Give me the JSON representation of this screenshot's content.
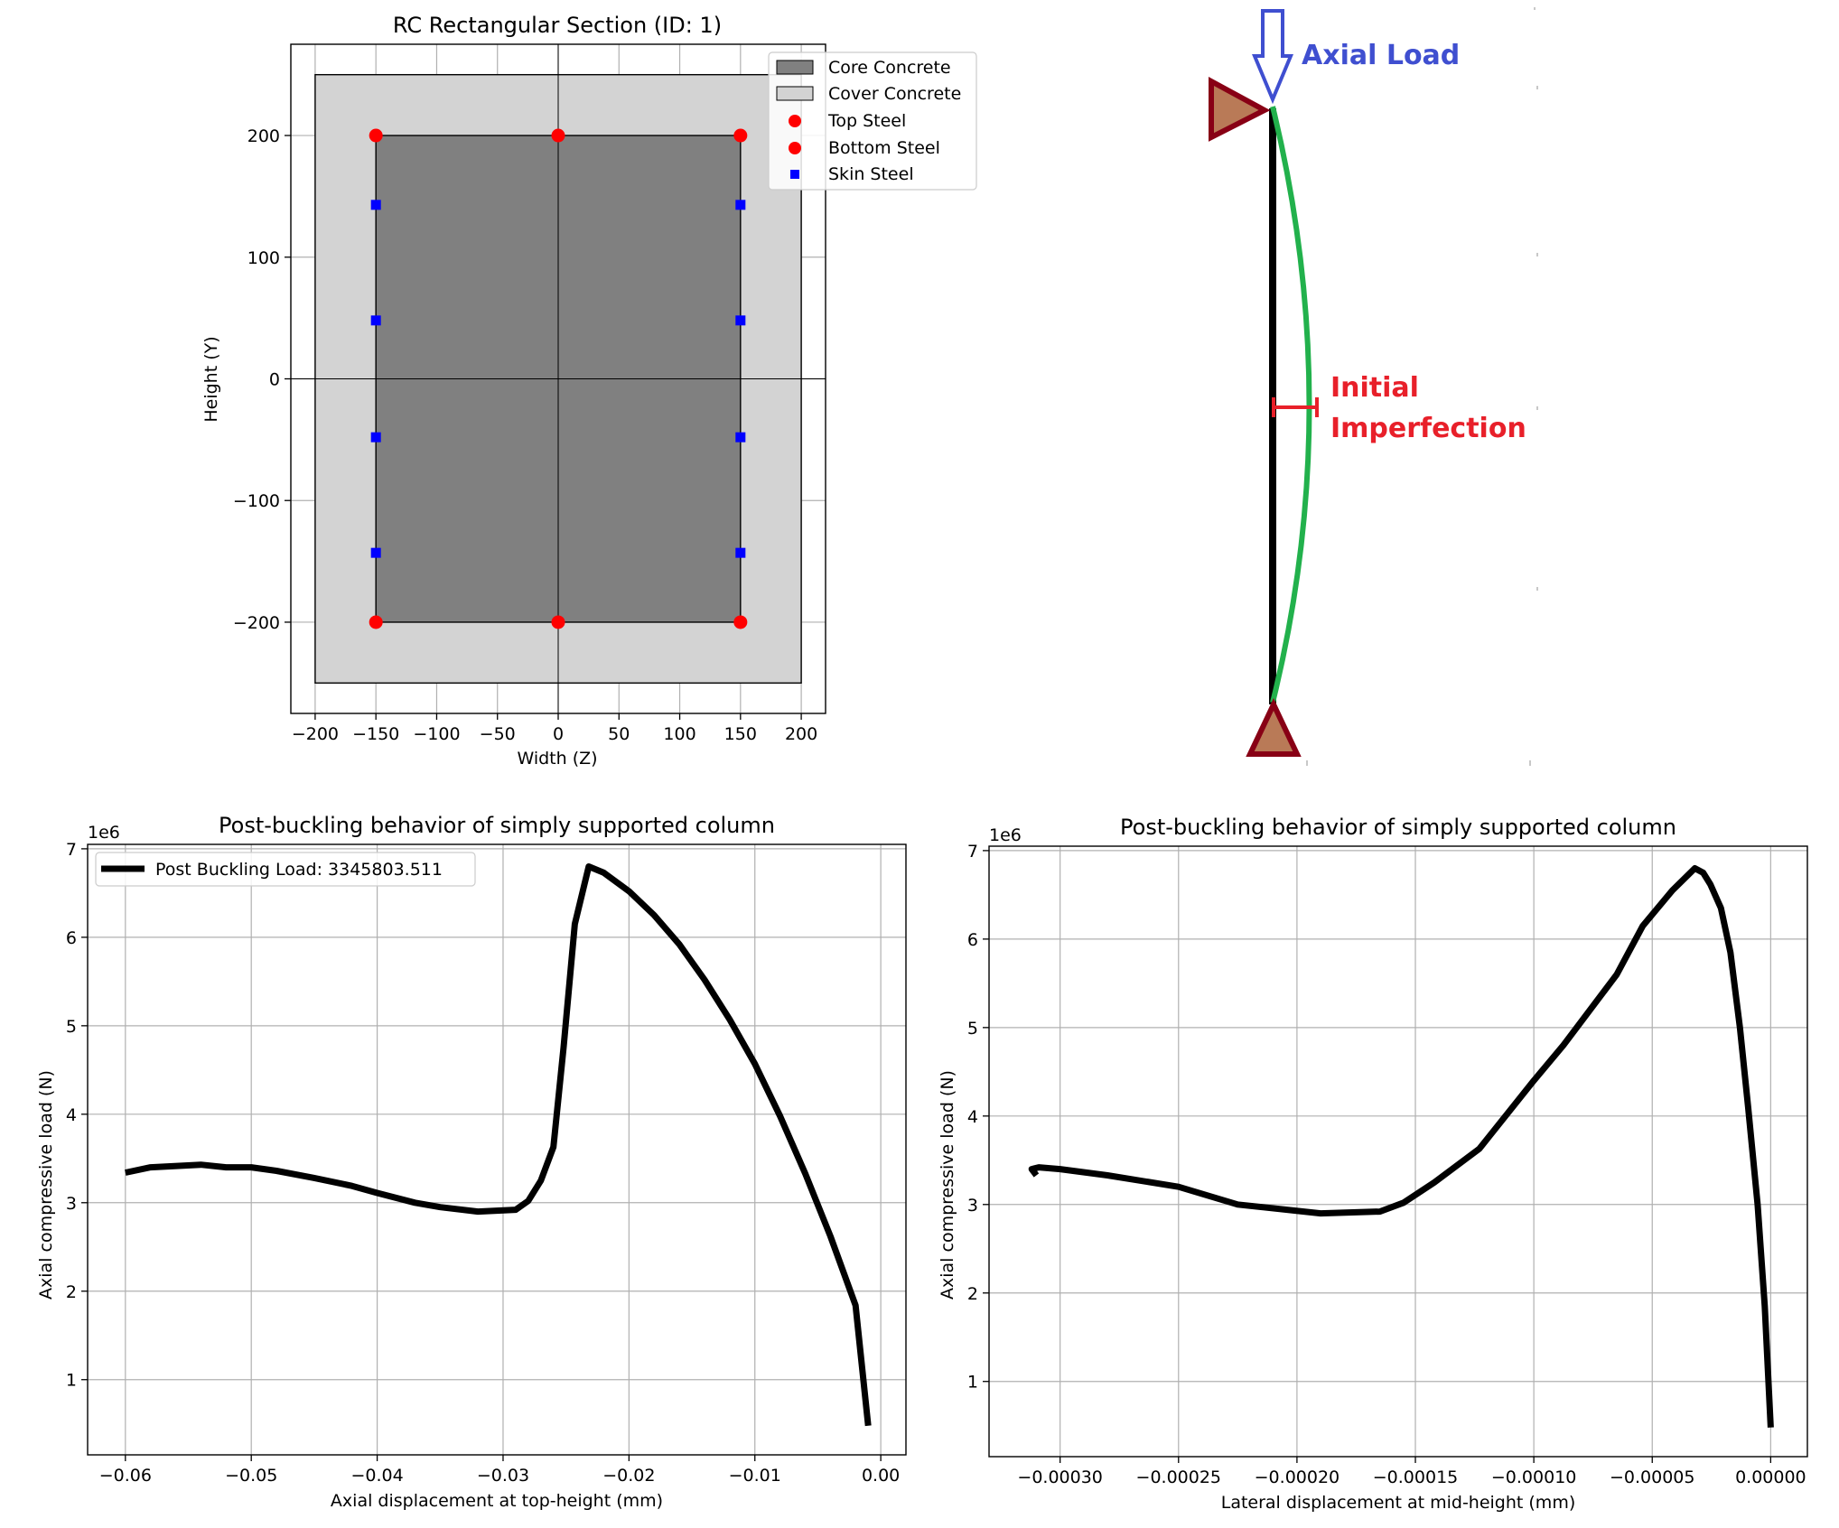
{
  "chart_data": [
    {
      "type": "section",
      "title": "RC Rectangular Section (ID: 1)",
      "xlabel": "Width (Z)",
      "ylabel": "Height (Y)",
      "xlim": [
        -220,
        220
      ],
      "ylim": [
        -275,
        275
      ],
      "xticks": [
        -200,
        -150,
        -100,
        -50,
        0,
        50,
        100,
        150,
        200
      ],
      "xtick_labels": [
        "−200",
        "−150",
        "−100",
        "−50",
        "0",
        "50",
        "100",
        "150",
        "200"
      ],
      "yticks": [
        200,
        100,
        0,
        -100,
        -200
      ],
      "ytick_labels": [
        "200",
        "100",
        "0",
        "−100",
        "−200"
      ],
      "grid": true,
      "cover": {
        "z": [
          -200,
          200
        ],
        "y": [
          -250,
          250
        ],
        "color": "#d3d3d3"
      },
      "core": {
        "z": [
          -150,
          150
        ],
        "y": [
          -200,
          200
        ],
        "color": "#808080"
      },
      "top_steel": [
        [
          -150,
          200
        ],
        [
          0,
          200
        ],
        [
          150,
          200
        ]
      ],
      "bottom_steel": [
        [
          -150,
          -200
        ],
        [
          0,
          -200
        ],
        [
          150,
          -200
        ]
      ],
      "skin_steel": [
        [
          -150,
          143
        ],
        [
          -150,
          48
        ],
        [
          -150,
          -48
        ],
        [
          -150,
          -143
        ],
        [
          150,
          143
        ],
        [
          150,
          48
        ],
        [
          150,
          -48
        ],
        [
          150,
          -143
        ]
      ],
      "legend": {
        "position": "upper-right",
        "entries": [
          "Core Concrete",
          "Cover Concrete",
          "Top Steel",
          "Bottom Steel",
          "Skin Steel"
        ]
      },
      "colors": {
        "top_steel": "#ff0000",
        "bottom_steel": "#ff0000",
        "skin_steel": "#0000ff"
      }
    },
    {
      "type": "line",
      "title": "Post-buckling behavior of simply supported column",
      "xlabel": "Axial displacement at top-height (mm)",
      "ylabel": "Axial compressive load (N)",
      "y_multiplier": "1e6",
      "xlim": [
        -0.063,
        0.002
      ],
      "ylim": [
        0.15,
        7.05
      ],
      "xticks": [
        -0.06,
        -0.05,
        -0.04,
        -0.03,
        -0.02,
        -0.01,
        0.0
      ],
      "xtick_labels": [
        "−0.06",
        "−0.05",
        "−0.04",
        "−0.03",
        "−0.02",
        "−0.01",
        "0.00"
      ],
      "yticks": [
        1,
        2,
        3,
        4,
        5,
        6,
        7
      ],
      "ytick_labels": [
        "1",
        "2",
        "3",
        "4",
        "5",
        "6",
        "7"
      ],
      "grid": true,
      "legend": {
        "position": "upper-left",
        "entries": [
          "Post Buckling Load:  3345803.511"
        ]
      },
      "series": [
        {
          "name": "Post Buckling Load:  3345803.511",
          "color": "#000000",
          "x": [
            -0.06,
            -0.058,
            -0.054,
            -0.052,
            -0.05,
            -0.048,
            -0.045,
            -0.042,
            -0.04,
            -0.037,
            -0.035,
            -0.032,
            -0.029,
            -0.028,
            -0.027,
            -0.026,
            -0.0252,
            -0.0243,
            -0.0232,
            -0.022,
            -0.02,
            -0.018,
            -0.016,
            -0.014,
            -0.012,
            -0.01,
            -0.008,
            -0.006,
            -0.004,
            -0.002,
            -0.001
          ],
          "y": [
            3.34,
            3.4,
            3.43,
            3.4,
            3.4,
            3.36,
            3.28,
            3.19,
            3.11,
            3.0,
            2.95,
            2.9,
            2.92,
            3.02,
            3.25,
            3.63,
            4.75,
            6.15,
            6.8,
            6.73,
            6.52,
            6.25,
            5.92,
            5.52,
            5.07,
            4.57,
            3.98,
            3.33,
            2.62,
            1.84,
            0.48
          ]
        }
      ]
    },
    {
      "type": "line",
      "title": "Post-buckling behavior of simply supported column",
      "xlabel": "Lateral displacement at mid-height (mm)",
      "ylabel": "Axial compressive load (N)",
      "y_multiplier": "1e6",
      "xlim": [
        -0.00033,
        1.55e-05
      ],
      "ylim": [
        0.15,
        7.05
      ],
      "xticks": [
        -0.0003,
        -0.00025,
        -0.0002,
        -0.00015,
        -0.0001,
        -5e-05,
        0.0
      ],
      "xtick_labels": [
        "−0.00030",
        "−0.00025",
        "−0.00020",
        "−0.00015",
        "−0.00010",
        "−0.00005",
        "0.00000"
      ],
      "yticks": [
        1,
        2,
        3,
        4,
        5,
        6,
        7
      ],
      "ytick_labels": [
        "1",
        "2",
        "3",
        "4",
        "5",
        "6",
        "7"
      ],
      "grid": true,
      "series": [
        {
          "name": "",
          "color": "#000000",
          "x": [
            -0.00031,
            -0.000312,
            -0.000309,
            -0.0003,
            -0.00028,
            -0.00025,
            -0.000225,
            -0.00019,
            -0.000165,
            -0.000155,
            -0.000142,
            -0.000123,
            -0.0001,
            -8.75e-05,
            -6.5e-05,
            -5.4e-05,
            -4.15e-05,
            -3.2e-05,
            -2.85e-05,
            -2.55e-05,
            -2.1e-05,
            -1.7e-05,
            -1.3e-05,
            -9.5e-06,
            -5.5e-06,
            -2.5e-06,
            0.0
          ],
          "y": [
            3.33,
            3.4,
            3.42,
            3.4,
            3.33,
            3.2,
            3.0,
            2.9,
            2.92,
            3.02,
            3.25,
            3.63,
            4.4,
            4.8,
            5.6,
            6.15,
            6.55,
            6.8,
            6.75,
            6.62,
            6.35,
            5.85,
            5.0,
            4.1,
            3.0,
            1.85,
            0.48
          ]
        }
      ]
    }
  ],
  "diagram": {
    "load_label": "Axial Load",
    "imperfection_label_line1": "Initial",
    "imperfection_label_line2": "Imperfection",
    "colors": {
      "load": "#3f4fd0",
      "imperfection": "#e8202a",
      "deflected_shape": "#22b14c",
      "support_fill": "#b97a57",
      "support_edge": "#880015",
      "column": "#000000"
    }
  }
}
